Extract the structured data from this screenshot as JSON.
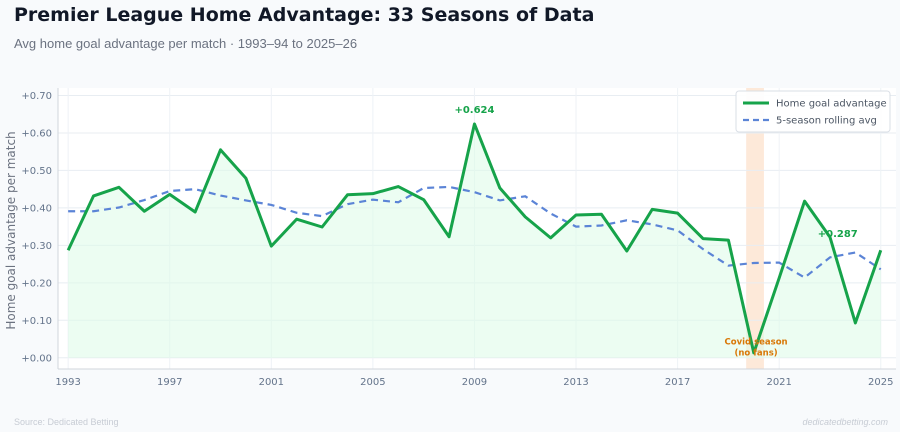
{
  "header": {
    "title": "Premier League Home Advantage: 33 Seasons of Data",
    "subtitle": "Avg home goal advantage per match · 1993–94 to 2025–26"
  },
  "footer": {
    "source": "Source: Dedicated Betting",
    "site": "dedicatedbetting.com"
  },
  "colors": {
    "main_line": "#16a34a",
    "rolling_line": "#5b84d6",
    "area_fill": "#dcfce7",
    "covid_band": "#fde3d0"
  },
  "chart_data": {
    "type": "line",
    "title": "",
    "xlabel": "",
    "ylabel": "Home goal advantage per match",
    "x": [
      1993,
      1994,
      1995,
      1996,
      1997,
      1998,
      1999,
      2000,
      2001,
      2002,
      2003,
      2004,
      2005,
      2006,
      2007,
      2008,
      2009,
      2010,
      2011,
      2012,
      2013,
      2014,
      2015,
      2016,
      2017,
      2018,
      2019,
      2020,
      2021,
      2022,
      2023,
      2024,
      2025
    ],
    "xticks": [
      1993,
      1997,
      2001,
      2005,
      2009,
      2013,
      2017,
      2021,
      2025
    ],
    "xlim": [
      1992.6,
      2025.6
    ],
    "ylim": [
      -0.03,
      0.72
    ],
    "yticks": [
      0.0,
      0.1,
      0.2,
      0.3,
      0.4,
      0.5,
      0.6,
      0.7
    ],
    "ytick_labels": [
      "+0.00",
      "+0.10",
      "+0.20",
      "+0.30",
      "+0.40",
      "+0.50",
      "+0.60",
      "+0.70"
    ],
    "grid": true,
    "legend_position": "top-right",
    "series": [
      {
        "name": "Home goal advantage",
        "style": "solid",
        "values": [
          0.287,
          0.432,
          0.455,
          0.391,
          0.436,
          0.389,
          0.555,
          0.479,
          0.298,
          0.37,
          0.349,
          0.435,
          0.438,
          0.457,
          0.422,
          0.323,
          0.624,
          0.453,
          0.376,
          0.32,
          0.381,
          0.383,
          0.285,
          0.396,
          0.386,
          0.318,
          0.314,
          0.013,
          0.213,
          0.418,
          0.322,
          0.093,
          0.287
        ]
      },
      {
        "name": "5-season rolling avg",
        "style": "dashed",
        "values": [
          0.391,
          0.391,
          0.401,
          0.421,
          0.445,
          0.45,
          0.433,
          0.42,
          0.408,
          0.387,
          0.378,
          0.41,
          0.422,
          0.415,
          0.453,
          0.456,
          0.442,
          0.42,
          0.431,
          0.385,
          0.35,
          0.353,
          0.367,
          0.356,
          0.34,
          0.29,
          0.246,
          0.253,
          0.254,
          0.214,
          0.268,
          0.281,
          0.236
        ]
      }
    ],
    "annotations": [
      {
        "x": 2009,
        "y": 0.624,
        "text": "+0.624"
      },
      {
        "x": 2025,
        "y": 0.287,
        "text": "+0.287"
      }
    ],
    "highlight": {
      "x_start": 2019.7,
      "x_end": 2020.4,
      "label_line1": "Covid season",
      "label_line2": "(no fans)"
    }
  }
}
